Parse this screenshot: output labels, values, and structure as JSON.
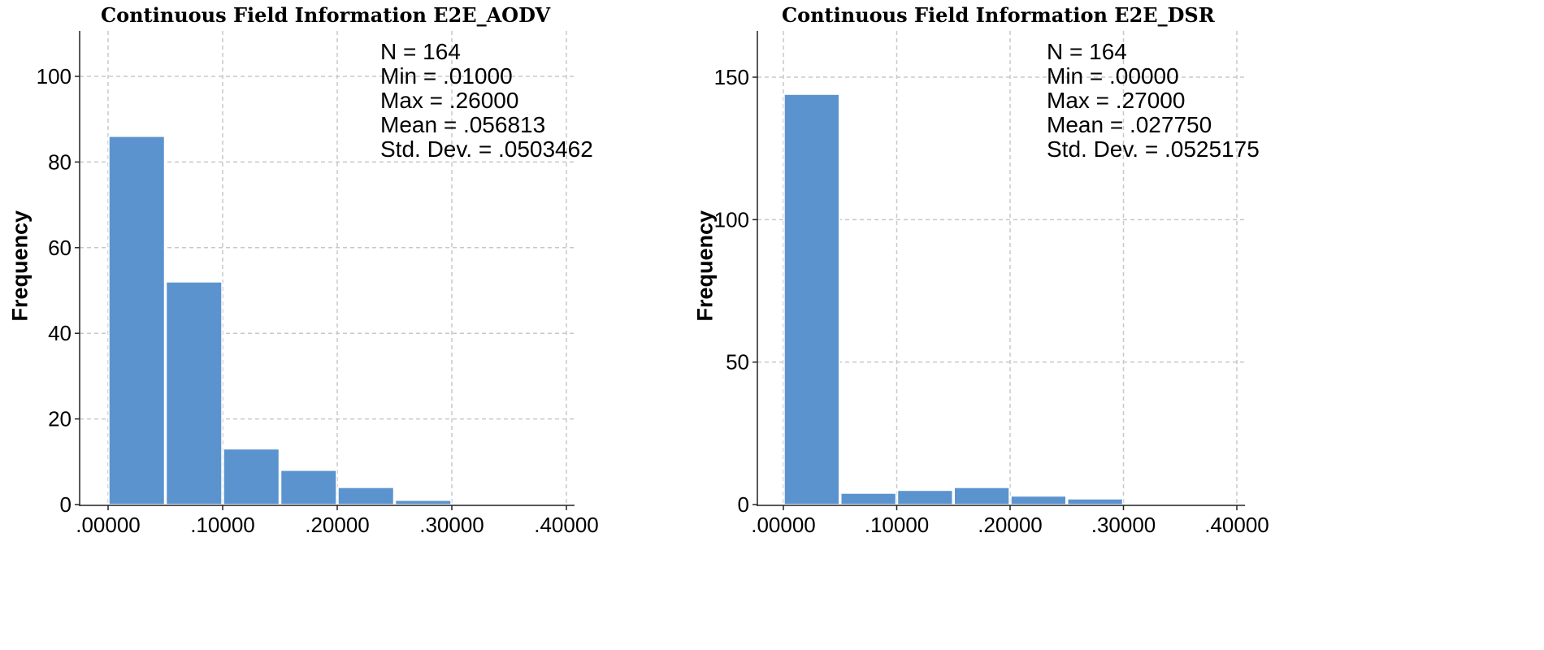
{
  "chart_data": [
    {
      "type": "bar",
      "title": "Continuous Field Information E2E_AODV",
      "xlabel": "",
      "ylabel": "Frequency",
      "bin_edges": [
        0.0,
        0.05,
        0.1,
        0.15,
        0.2,
        0.25,
        0.3
      ],
      "values": [
        86,
        52,
        13,
        8,
        4,
        1
      ],
      "xlim": [
        0.0,
        0.4
      ],
      "ylim": [
        0,
        100
      ],
      "x_ticks": [
        ".00000",
        ".10000",
        ".20000",
        ".30000",
        ".40000"
      ],
      "y_ticks": [
        "0",
        "20",
        "40",
        "60",
        "80",
        "100"
      ],
      "grid": true,
      "bar_color": "#5b93cf",
      "stats": [
        "N = 164",
        "Min = .01000",
        "Max = .26000",
        "Mean = .056813",
        "Std. Dev. = .0503462"
      ]
    },
    {
      "type": "bar",
      "title": "Continuous Field Information E2E_DSR",
      "xlabel": "",
      "ylabel": "Frequency",
      "bin_edges": [
        0.0,
        0.05,
        0.1,
        0.15,
        0.2,
        0.25,
        0.3
      ],
      "values": [
        144,
        4,
        5,
        6,
        3,
        2
      ],
      "xlim": [
        0.0,
        0.4
      ],
      "ylim": [
        0,
        150
      ],
      "x_ticks": [
        ".00000",
        ".10000",
        ".20000",
        ".30000",
        ".40000"
      ],
      "y_ticks": [
        "0",
        "50",
        "100",
        "150"
      ],
      "grid": true,
      "bar_color": "#5b93cf",
      "stats": [
        "N = 164",
        "Min = .00000",
        "Max = .27000",
        "Mean = .027750",
        "Std. Dev. = .0525175"
      ]
    }
  ]
}
